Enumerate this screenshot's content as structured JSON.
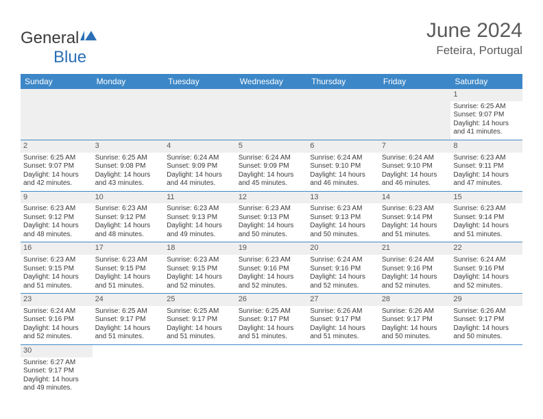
{
  "logo": {
    "text_part1": "General",
    "text_part2": "Blue"
  },
  "title": "June 2024",
  "location": "Feteira, Portugal",
  "colors": {
    "header_bg": "#3c87c7",
    "header_text": "#ffffff",
    "shade_bg": "#efefef",
    "cell_border": "#3c87c7",
    "body_text": "#3a3a3a",
    "title_text": "#5a5a5a"
  },
  "day_headers": [
    "Sunday",
    "Monday",
    "Tuesday",
    "Wednesday",
    "Thursday",
    "Friday",
    "Saturday"
  ],
  "weeks": [
    [
      null,
      null,
      null,
      null,
      null,
      null,
      {
        "n": "1",
        "rise": "6:25 AM",
        "set": "9:07 PM",
        "dlh": "14",
        "dlm": "41"
      }
    ],
    [
      {
        "n": "2",
        "rise": "6:25 AM",
        "set": "9:07 PM",
        "dlh": "14",
        "dlm": "42"
      },
      {
        "n": "3",
        "rise": "6:25 AM",
        "set": "9:08 PM",
        "dlh": "14",
        "dlm": "43"
      },
      {
        "n": "4",
        "rise": "6:24 AM",
        "set": "9:09 PM",
        "dlh": "14",
        "dlm": "44"
      },
      {
        "n": "5",
        "rise": "6:24 AM",
        "set": "9:09 PM",
        "dlh": "14",
        "dlm": "45"
      },
      {
        "n": "6",
        "rise": "6:24 AM",
        "set": "9:10 PM",
        "dlh": "14",
        "dlm": "46"
      },
      {
        "n": "7",
        "rise": "6:24 AM",
        "set": "9:10 PM",
        "dlh": "14",
        "dlm": "46"
      },
      {
        "n": "8",
        "rise": "6:23 AM",
        "set": "9:11 PM",
        "dlh": "14",
        "dlm": "47"
      }
    ],
    [
      {
        "n": "9",
        "rise": "6:23 AM",
        "set": "9:12 PM",
        "dlh": "14",
        "dlm": "48"
      },
      {
        "n": "10",
        "rise": "6:23 AM",
        "set": "9:12 PM",
        "dlh": "14",
        "dlm": "48"
      },
      {
        "n": "11",
        "rise": "6:23 AM",
        "set": "9:13 PM",
        "dlh": "14",
        "dlm": "49"
      },
      {
        "n": "12",
        "rise": "6:23 AM",
        "set": "9:13 PM",
        "dlh": "14",
        "dlm": "50"
      },
      {
        "n": "13",
        "rise": "6:23 AM",
        "set": "9:13 PM",
        "dlh": "14",
        "dlm": "50"
      },
      {
        "n": "14",
        "rise": "6:23 AM",
        "set": "9:14 PM",
        "dlh": "14",
        "dlm": "51"
      },
      {
        "n": "15",
        "rise": "6:23 AM",
        "set": "9:14 PM",
        "dlh": "14",
        "dlm": "51"
      }
    ],
    [
      {
        "n": "16",
        "rise": "6:23 AM",
        "set": "9:15 PM",
        "dlh": "14",
        "dlm": "51"
      },
      {
        "n": "17",
        "rise": "6:23 AM",
        "set": "9:15 PM",
        "dlh": "14",
        "dlm": "51"
      },
      {
        "n": "18",
        "rise": "6:23 AM",
        "set": "9:15 PM",
        "dlh": "14",
        "dlm": "52"
      },
      {
        "n": "19",
        "rise": "6:23 AM",
        "set": "9:16 PM",
        "dlh": "14",
        "dlm": "52"
      },
      {
        "n": "20",
        "rise": "6:24 AM",
        "set": "9:16 PM",
        "dlh": "14",
        "dlm": "52"
      },
      {
        "n": "21",
        "rise": "6:24 AM",
        "set": "9:16 PM",
        "dlh": "14",
        "dlm": "52"
      },
      {
        "n": "22",
        "rise": "6:24 AM",
        "set": "9:16 PM",
        "dlh": "14",
        "dlm": "52"
      }
    ],
    [
      {
        "n": "23",
        "rise": "6:24 AM",
        "set": "9:16 PM",
        "dlh": "14",
        "dlm": "52"
      },
      {
        "n": "24",
        "rise": "6:25 AM",
        "set": "9:17 PM",
        "dlh": "14",
        "dlm": "51"
      },
      {
        "n": "25",
        "rise": "6:25 AM",
        "set": "9:17 PM",
        "dlh": "14",
        "dlm": "51"
      },
      {
        "n": "26",
        "rise": "6:25 AM",
        "set": "9:17 PM",
        "dlh": "14",
        "dlm": "51"
      },
      {
        "n": "27",
        "rise": "6:26 AM",
        "set": "9:17 PM",
        "dlh": "14",
        "dlm": "51"
      },
      {
        "n": "28",
        "rise": "6:26 AM",
        "set": "9:17 PM",
        "dlh": "14",
        "dlm": "50"
      },
      {
        "n": "29",
        "rise": "6:26 AM",
        "set": "9:17 PM",
        "dlh": "14",
        "dlm": "50"
      }
    ],
    [
      {
        "n": "30",
        "rise": "6:27 AM",
        "set": "9:17 PM",
        "dlh": "14",
        "dlm": "49"
      },
      null,
      null,
      null,
      null,
      null,
      null
    ]
  ],
  "labels": {
    "sunrise": "Sunrise: ",
    "sunset": "Sunset: ",
    "daylight_prefix": "Daylight: ",
    "hours_word": " hours",
    "and_word": "and ",
    "minutes_word": " minutes."
  }
}
